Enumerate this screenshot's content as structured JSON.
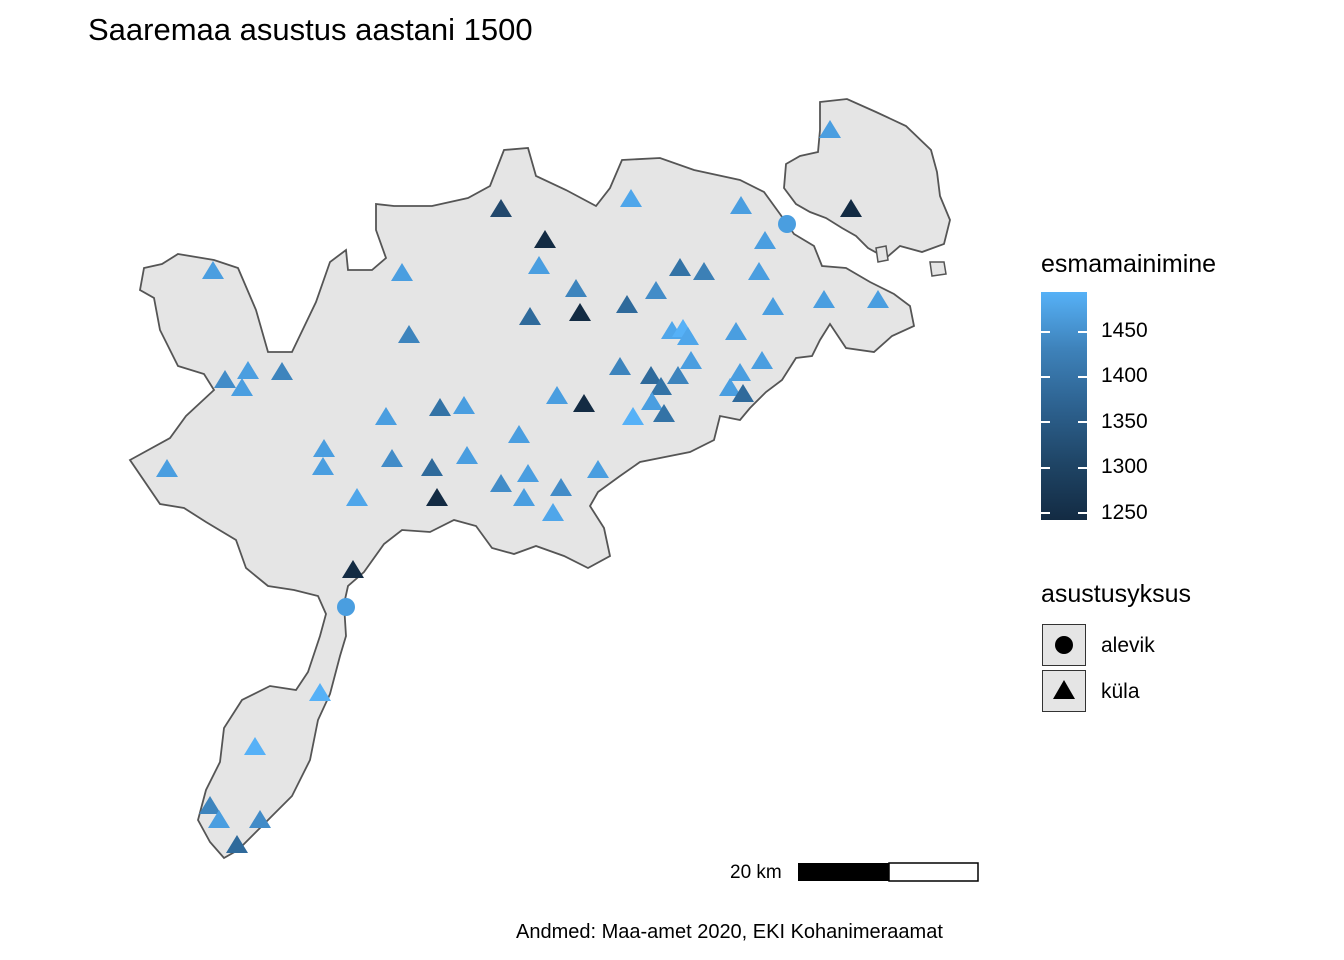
{
  "title": "Saaremaa asustus aastani 1500",
  "legend_color": {
    "title": "esmamainimine",
    "ticks": [
      "1450",
      "1400",
      "1350",
      "1300",
      "1250"
    ],
    "low_color": "#132B43",
    "high_color": "#56B1F7"
  },
  "legend_shape": {
    "title": "asustusyksus",
    "items": [
      {
        "label": "alevik",
        "shape": "circle"
      },
      {
        "label": "küla",
        "shape": "triangle"
      }
    ]
  },
  "scale_bar": {
    "label": "20 km"
  },
  "caption": "Andmed: Maa-amet 2020, EKI Kohanimeraamat",
  "colors": {
    "land": "#e5e5e5",
    "coast": "#555555",
    "background": "#ffffff"
  }
}
